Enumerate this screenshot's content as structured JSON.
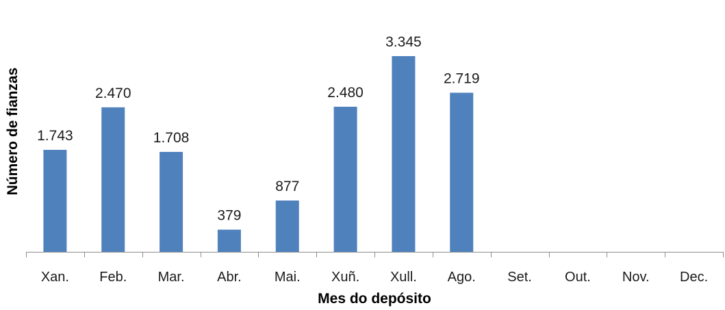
{
  "chart_data": {
    "type": "bar",
    "categories": [
      "Xan.",
      "Feb.",
      "Mar.",
      "Abr.",
      "Mai.",
      "Xuñ.",
      "Xull.",
      "Ago.",
      "Set.",
      "Out.",
      "Nov.",
      "Dec."
    ],
    "values": [
      1743,
      2470,
      1708,
      379,
      877,
      2480,
      3345,
      2719,
      null,
      null,
      null,
      null
    ],
    "data_labels": [
      "1.743",
      "2.470",
      "1.708",
      "379",
      "877",
      "2.480",
      "3.345",
      "2.719",
      "",
      "",
      "",
      ""
    ],
    "title": "",
    "xlabel": "Mes do depósito",
    "ylabel": "Número de fianzas",
    "ylim": [
      0,
      3345
    ],
    "bar_color": "#4f81bd",
    "grid": false,
    "legend": "none"
  }
}
